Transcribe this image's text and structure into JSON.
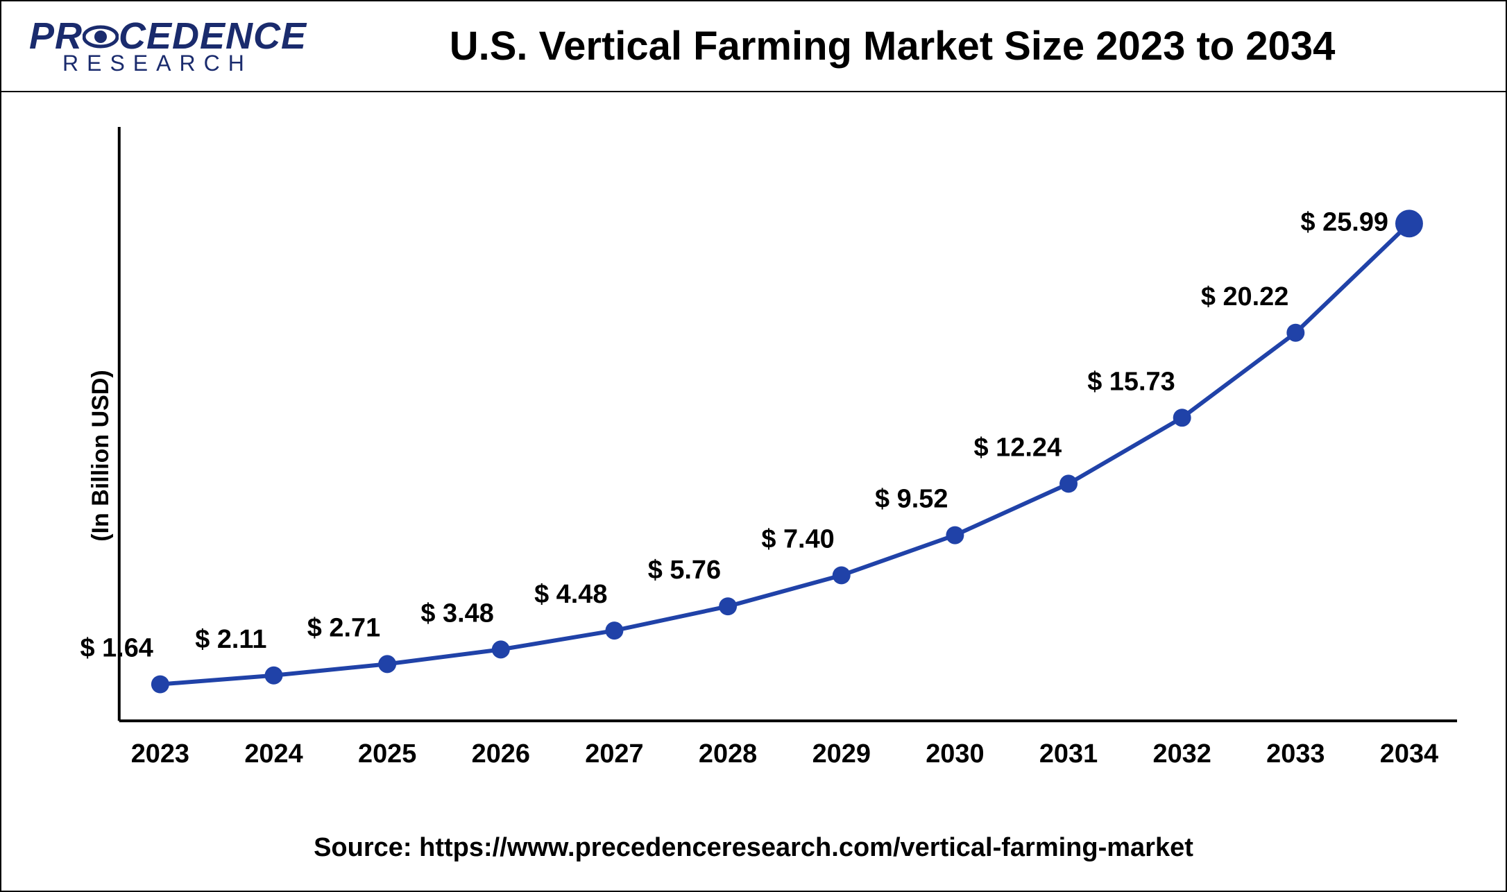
{
  "logo": {
    "name_top": "PRECEDENCE",
    "name_bottom": "RESEARCH",
    "color": "#1a2b6d"
  },
  "chart": {
    "type": "line",
    "title": "U.S. Vertical Farming Market Size 2023 to 2034",
    "title_fontsize": 58,
    "title_weight": 900,
    "ylabel": "(In Billion USD)",
    "ylabel_fontsize": 34,
    "categories": [
      "2023",
      "2024",
      "2025",
      "2026",
      "2027",
      "2028",
      "2029",
      "2030",
      "2031",
      "2032",
      "2033",
      "2034"
    ],
    "values": [
      1.64,
      2.11,
      2.71,
      3.48,
      4.48,
      5.76,
      7.4,
      9.52,
      12.24,
      15.73,
      20.22,
      25.99
    ],
    "value_labels": [
      "$ 1.64",
      "$ 2.11",
      "$ 2.71",
      "$ 3.48",
      "$ 4.48",
      "$ 5.76",
      "$ 7.40",
      "$ 9.52",
      "$ 12.24",
      "$ 15.73",
      "$ 20.22",
      "$ 25.99"
    ],
    "line_color": "#2042a8",
    "marker_color": "#2042a8",
    "marker_radius": 13,
    "last_marker_radius": 20,
    "line_width": 6,
    "axis_color": "#000000",
    "axis_width": 4,
    "xlabel_fontsize": 38,
    "xlabel_weight": 700,
    "datalabel_fontsize": 38,
    "datalabel_weight": 700,
    "ylim": [
      0,
      30
    ],
    "plot_bg": "#ffffff"
  },
  "source": {
    "prefix": "Source: ",
    "url": "https://www.precedenceresearch.com/vertical-farming-market",
    "fontsize": 38
  }
}
